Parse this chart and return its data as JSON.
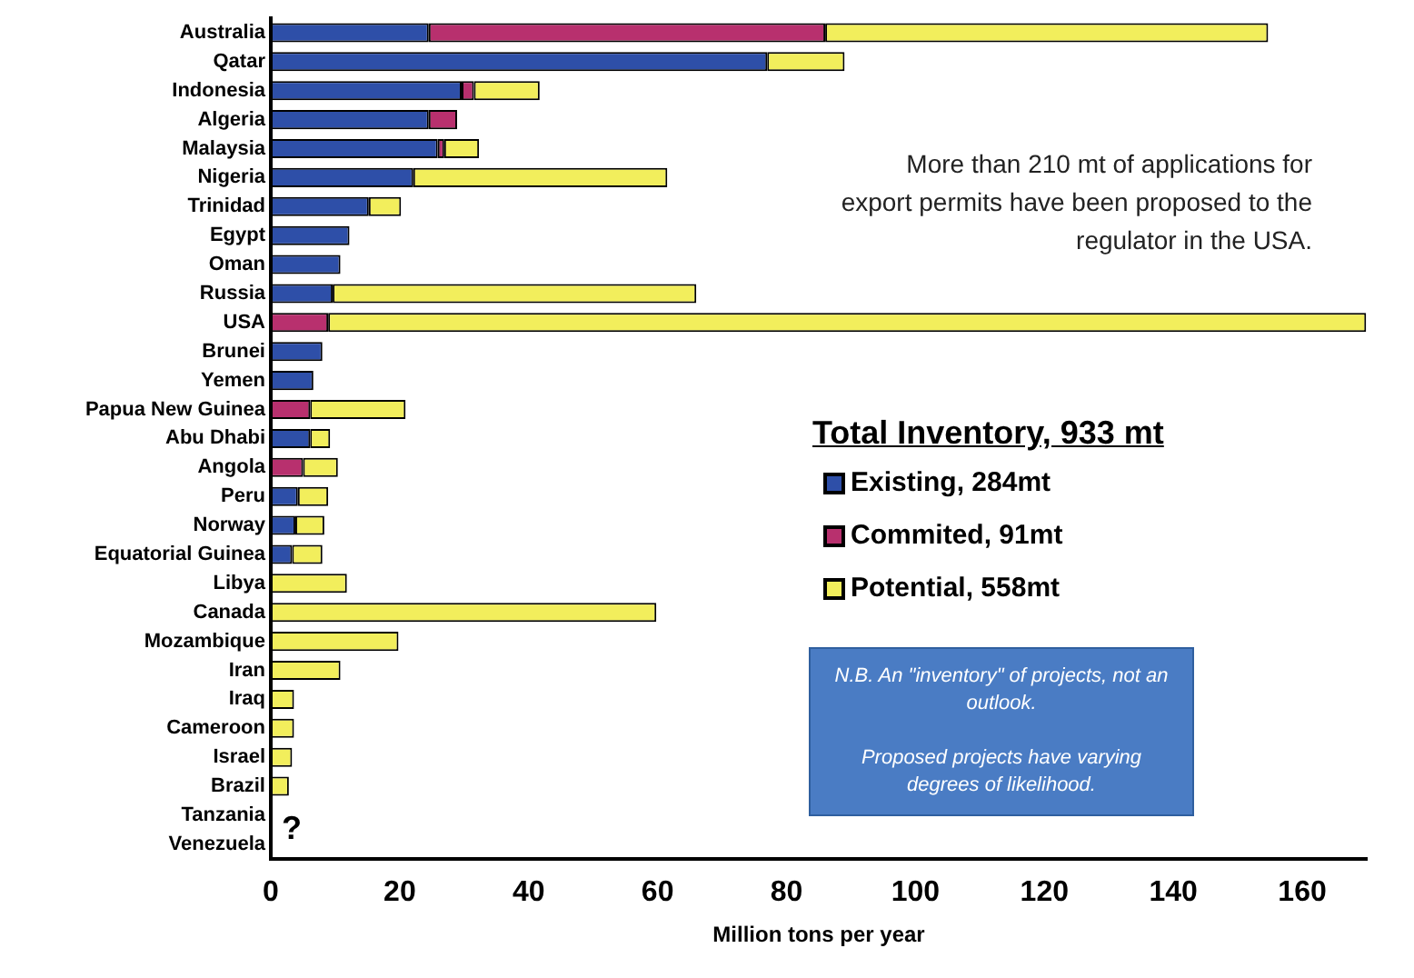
{
  "chart_data": {
    "type": "bar",
    "orientation": "horizontal",
    "stacked": true,
    "categories": [
      "Australia",
      "Qatar",
      "Indonesia",
      "Algeria",
      "Malaysia",
      "Nigeria",
      "Trinidad",
      "Egypt",
      "Oman",
      "Russia",
      "USA",
      "Brunei",
      "Yemen",
      "Papua New Guinea",
      "Abu Dhabi",
      "Angola",
      "Peru",
      "Norway",
      "Equatorial Guinea",
      "Libya",
      "Canada",
      "Mozambique",
      "Iran",
      "Iraq",
      "Cameroon",
      "Israel",
      "Brazil",
      "Tanzania",
      "Venezuela"
    ],
    "series": [
      {
        "name": "Existing, 284mt",
        "color": "#2e4fa8",
        "values": [
          24.5,
          77,
          29.6,
          24.5,
          25.9,
          22.1,
          15.2,
          12.2,
          10.8,
          9.6,
          null,
          8,
          6.6,
          null,
          6.1,
          null,
          4.2,
          3.8,
          3.3,
          null,
          null,
          null,
          null,
          null,
          null,
          null,
          null,
          null,
          null
        ]
      },
      {
        "name": "Commited, 91mt",
        "color": "#b8306e",
        "values": [
          61.5,
          null,
          1.9,
          4.4,
          1,
          null,
          null,
          null,
          null,
          null,
          8.9,
          null,
          null,
          6.1,
          null,
          5,
          null,
          null,
          null,
          null,
          null,
          null,
          null,
          null,
          null,
          null,
          null,
          null,
          null
        ]
      },
      {
        "name": "Potential, 558mt",
        "color": "#f2ee5c",
        "values": [
          68.7,
          12,
          10.2,
          null,
          5.4,
          39.4,
          5,
          null,
          null,
          56.4,
          161,
          null,
          null,
          14.8,
          3.1,
          5.4,
          4.7,
          4.5,
          4.7,
          11.8,
          59.8,
          19.8,
          10.8,
          3.6,
          3.6,
          3.3,
          2.8,
          null,
          null
        ]
      }
    ],
    "xlim": [
      0,
      170
    ],
    "xticks": [
      0,
      20,
      40,
      60,
      80,
      100,
      120,
      140,
      160
    ],
    "xlabel": "Million tons per year",
    "legend_title": "Total Inventory, 933 mt",
    "legend": "right",
    "grid": false,
    "annotations": [
      "More than 210 mt of applications for export permits have been proposed to the regulator in the USA.",
      "N.B. An \"inventory\" of  projects, not an outlook.\n\nProposed projects have varying degrees of likelihood.",
      "?"
    ]
  }
}
